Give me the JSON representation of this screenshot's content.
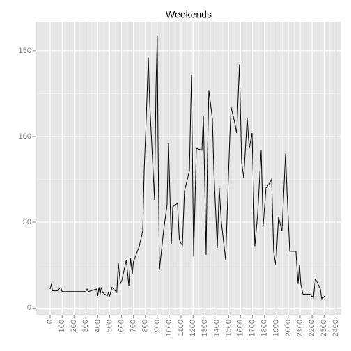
{
  "chart_data": {
    "type": "line",
    "title": "Weekends",
    "x": [
      0,
      10,
      20,
      60,
      90,
      100,
      300,
      310,
      320,
      390,
      400,
      410,
      420,
      430,
      440,
      480,
      490,
      500,
      520,
      560,
      573,
      590,
      602,
      640,
      661,
      675,
      690,
      700,
      749,
      778,
      790,
      807,
      825,
      836,
      877,
      889,
      900,
      906,
      918,
      953,
      982,
      994,
      1018,
      1030,
      1070,
      1085,
      1111,
      1128,
      1170,
      1187,
      1205,
      1228,
      1275,
      1287,
      1298,
      1310,
      1322,
      1333,
      1363,
      1375,
      1404,
      1420,
      1438,
      1474,
      1509,
      1520,
      1544,
      1567,
      1590,
      1608,
      1626,
      1655,
      1672,
      1696,
      1719,
      1743,
      1772,
      1789,
      1813,
      1836,
      1860,
      1877,
      1895,
      1918,
      1947,
      1977,
      1988,
      2012,
      2064,
      2082,
      2094,
      2105,
      2123,
      2181,
      2211,
      2228,
      2269,
      2281,
      2304
    ],
    "values": [
      11,
      14,
      10,
      10,
      12,
      9.5,
      9.5,
      11,
      9.5,
      11,
      7,
      12,
      8,
      12,
      9,
      7,
      9,
      7,
      12,
      9,
      26,
      14,
      16,
      28,
      13,
      29,
      20,
      27,
      36,
      45,
      80,
      110,
      146,
      120,
      63,
      128,
      159,
      100,
      22,
      45,
      60,
      96,
      37,
      59,
      61,
      40,
      36,
      68,
      80,
      136,
      30,
      93,
      92,
      112,
      75,
      31,
      90,
      127,
      110,
      80,
      35,
      70,
      50,
      28,
      100,
      117,
      110,
      102,
      142,
      85,
      76,
      111,
      93,
      102,
      36,
      55,
      92,
      48,
      70,
      72,
      75,
      33,
      25,
      53,
      45,
      90,
      70,
      33,
      33,
      14,
      25,
      14,
      8,
      8,
      6,
      17,
      11,
      5,
      7
    ],
    "color": "#000000",
    "xlim": [
      -117,
      2445
    ],
    "xticks": [
      0,
      100,
      200,
      300,
      400,
      500,
      600,
      700,
      800,
      900,
      1000,
      1100,
      1200,
      1300,
      1400,
      1500,
      1600,
      1700,
      1800,
      1900,
      2000,
      2100,
      2200,
      2300,
      2400
    ],
    "ylim": [
      -4,
      167
    ],
    "yticks": [
      0,
      50,
      100,
      150
    ],
    "grid": true
  }
}
